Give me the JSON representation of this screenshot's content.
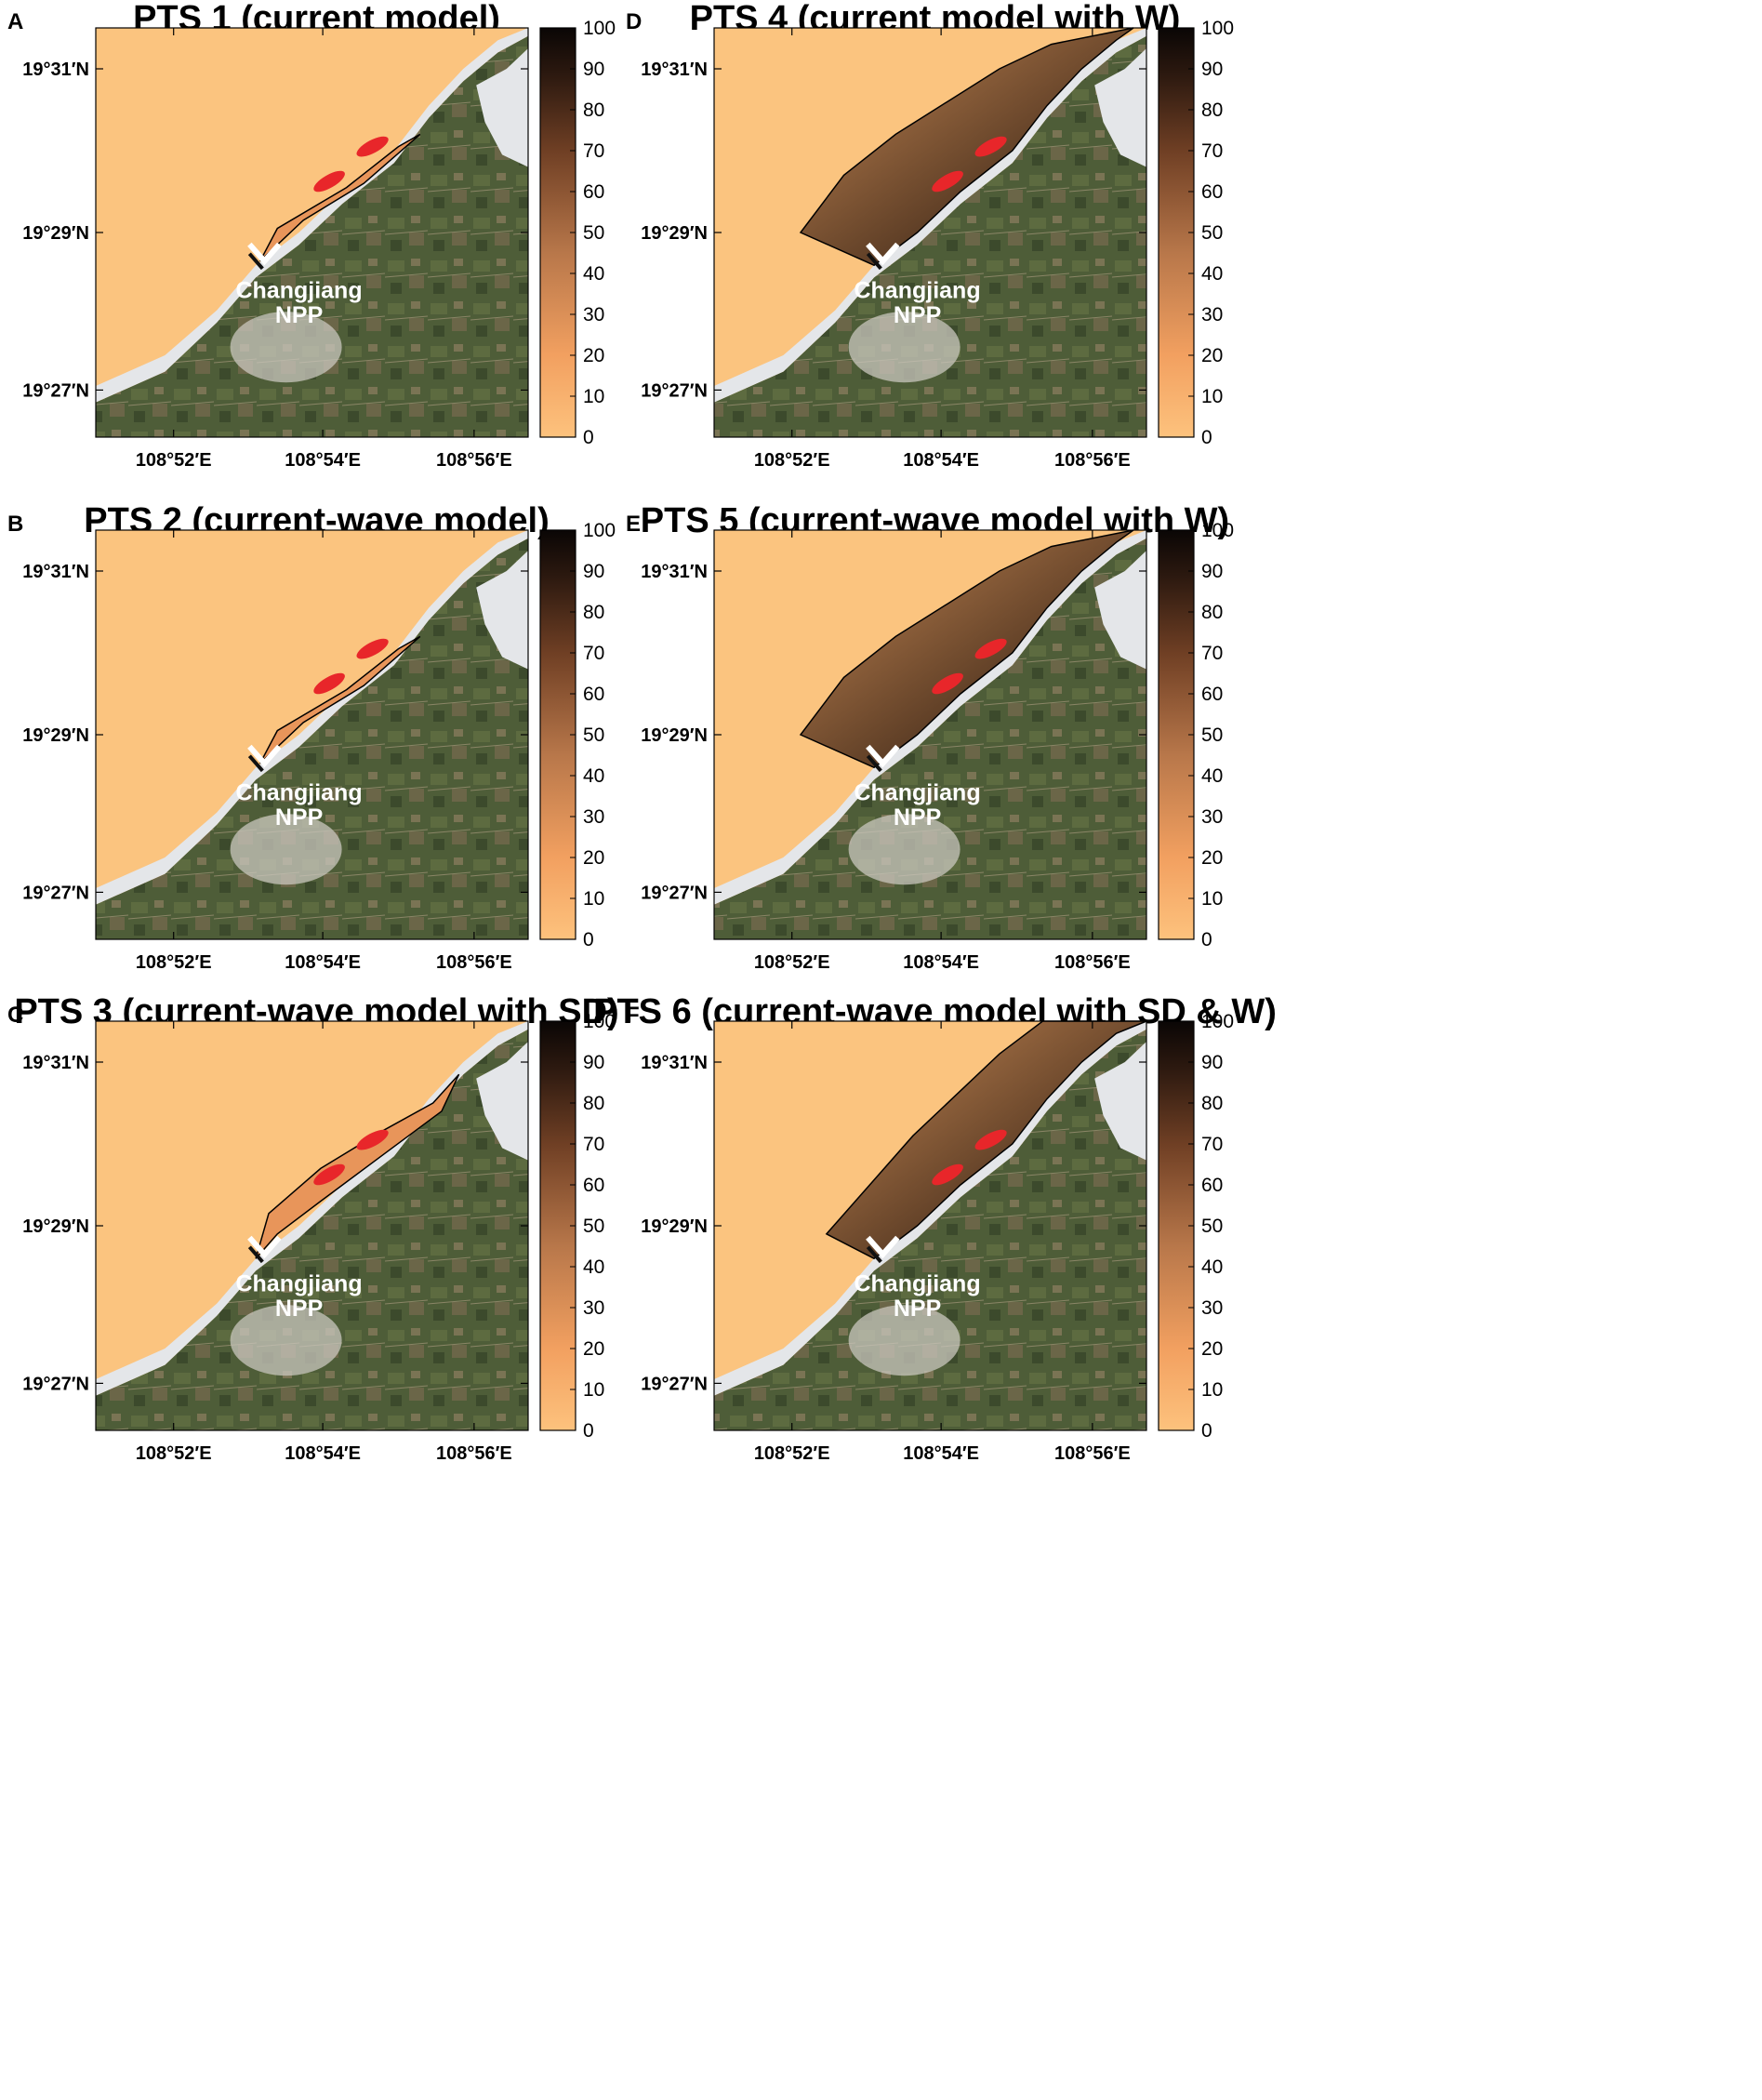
{
  "panels": [
    {
      "letter": "A",
      "title": "PTS 1 (current model)",
      "plume": "small"
    },
    {
      "letter": "B",
      "title": "PTS 2 (current-wave model)",
      "plume": "small"
    },
    {
      "letter": "C",
      "title": "PTS 3 (current-wave model with SD)",
      "plume": "medium"
    },
    {
      "letter": "D",
      "title": "PTS 4 (current model with W)",
      "plume": "large"
    },
    {
      "letter": "E",
      "title": "PTS 5 (current-wave model with W)",
      "plume": "large"
    },
    {
      "letter": "F",
      "title": "PTS 6 (current-wave model with SD & W)",
      "plume": "xlarge"
    }
  ],
  "axes": {
    "y_ticks": [
      "19°31′N",
      "19°29′N",
      "19°27′N"
    ],
    "x_ticks": [
      "108°52′E",
      "108°54′E",
      "108°56′E"
    ]
  },
  "colorbar": {
    "ticks": [
      "100",
      "90",
      "80",
      "70",
      "60",
      "50",
      "40",
      "30",
      "20",
      "10",
      "0"
    ],
    "color_low": "#fdc27d",
    "color_mid": "#a0653c",
    "color_high": "#0a0605"
  },
  "site": {
    "line1": "Changjiang",
    "line2": "NPP"
  },
  "colors": {
    "sea": "#fbc47f",
    "beach": "#e4e6e9",
    "land": "#4a5a36",
    "marker": "#e8262a"
  }
}
